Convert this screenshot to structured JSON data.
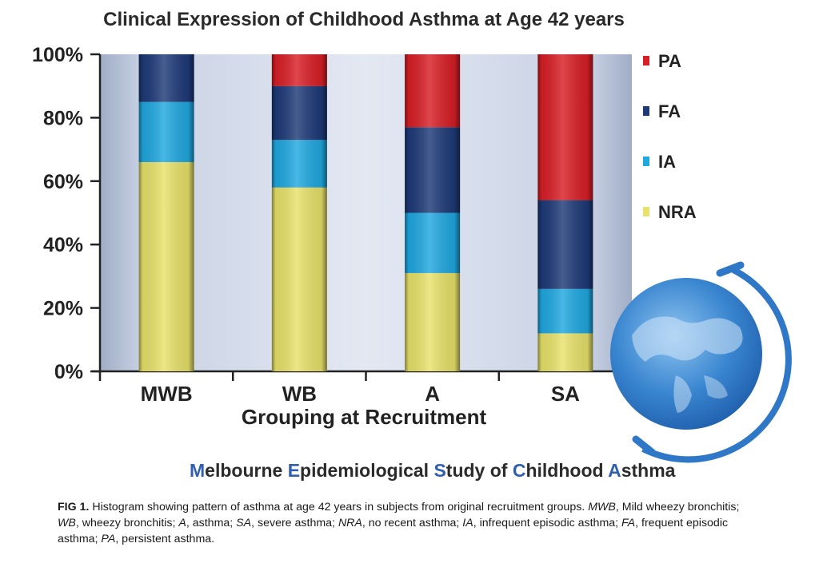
{
  "chart_data": {
    "type": "bar",
    "stacked": true,
    "title": "Clinical Expression of Childhood Asthma at Age 42 years",
    "xlabel": "Grouping at Recruitment",
    "ylabel": "",
    "ylim": [
      0,
      100
    ],
    "y_ticks": [
      "0%",
      "20%",
      "40%",
      "60%",
      "80%",
      "100%"
    ],
    "categories": [
      "MWB",
      "WB",
      "A",
      "SA"
    ],
    "series": [
      {
        "name": "NRA",
        "color": "#e8e26a",
        "values": [
          66,
          58,
          31,
          12
        ]
      },
      {
        "name": "IA",
        "color": "#20a8e0",
        "values": [
          19,
          15,
          19,
          14
        ]
      },
      {
        "name": "FA",
        "color": "#1e3a78",
        "values": [
          15,
          17,
          27,
          28
        ]
      },
      {
        "name": "PA",
        "color": "#d81f26",
        "values": [
          0,
          10,
          23,
          46
        ]
      }
    ],
    "legend": {
      "position": "right",
      "order": [
        "PA",
        "FA",
        "IA",
        "NRA"
      ]
    },
    "grid": false
  },
  "study_name": {
    "parts": [
      {
        "initial": "M",
        "rest": "elbourne "
      },
      {
        "initial": "E",
        "rest": "pidemiological "
      },
      {
        "initial": "S",
        "rest": "tudy of "
      },
      {
        "initial": "C",
        "rest": "hildhood "
      },
      {
        "initial": "A",
        "rest": "sthma"
      }
    ]
  },
  "caption": {
    "label": "FIG 1.",
    "text": "Histogram showing pattern of asthma at age 42 years in subjects from original recruitment groups.",
    "abbreviations": [
      {
        "abbr": "MWB",
        "def": "Mild wheezy bronchitis; "
      },
      {
        "abbr": "WB",
        "def": "wheezy bronchitis; "
      },
      {
        "abbr": "A",
        "def": "asthma; "
      },
      {
        "abbr": "SA",
        "def": "severe asthma; "
      },
      {
        "abbr": "NRA",
        "def": "no recent asthma; "
      },
      {
        "abbr": "IA",
        "def": "infrequent episodic asthma; "
      },
      {
        "abbr": "FA",
        "def": "frequent episodic asthma; "
      },
      {
        "abbr": "PA",
        "def": "persistent asthma."
      }
    ]
  },
  "colors": {
    "plot_bg_light": "#dde3f0",
    "plot_bg_dark": "#a7b4cc",
    "study_initial": "#2e5fb0",
    "globe": "#2f78c8"
  }
}
